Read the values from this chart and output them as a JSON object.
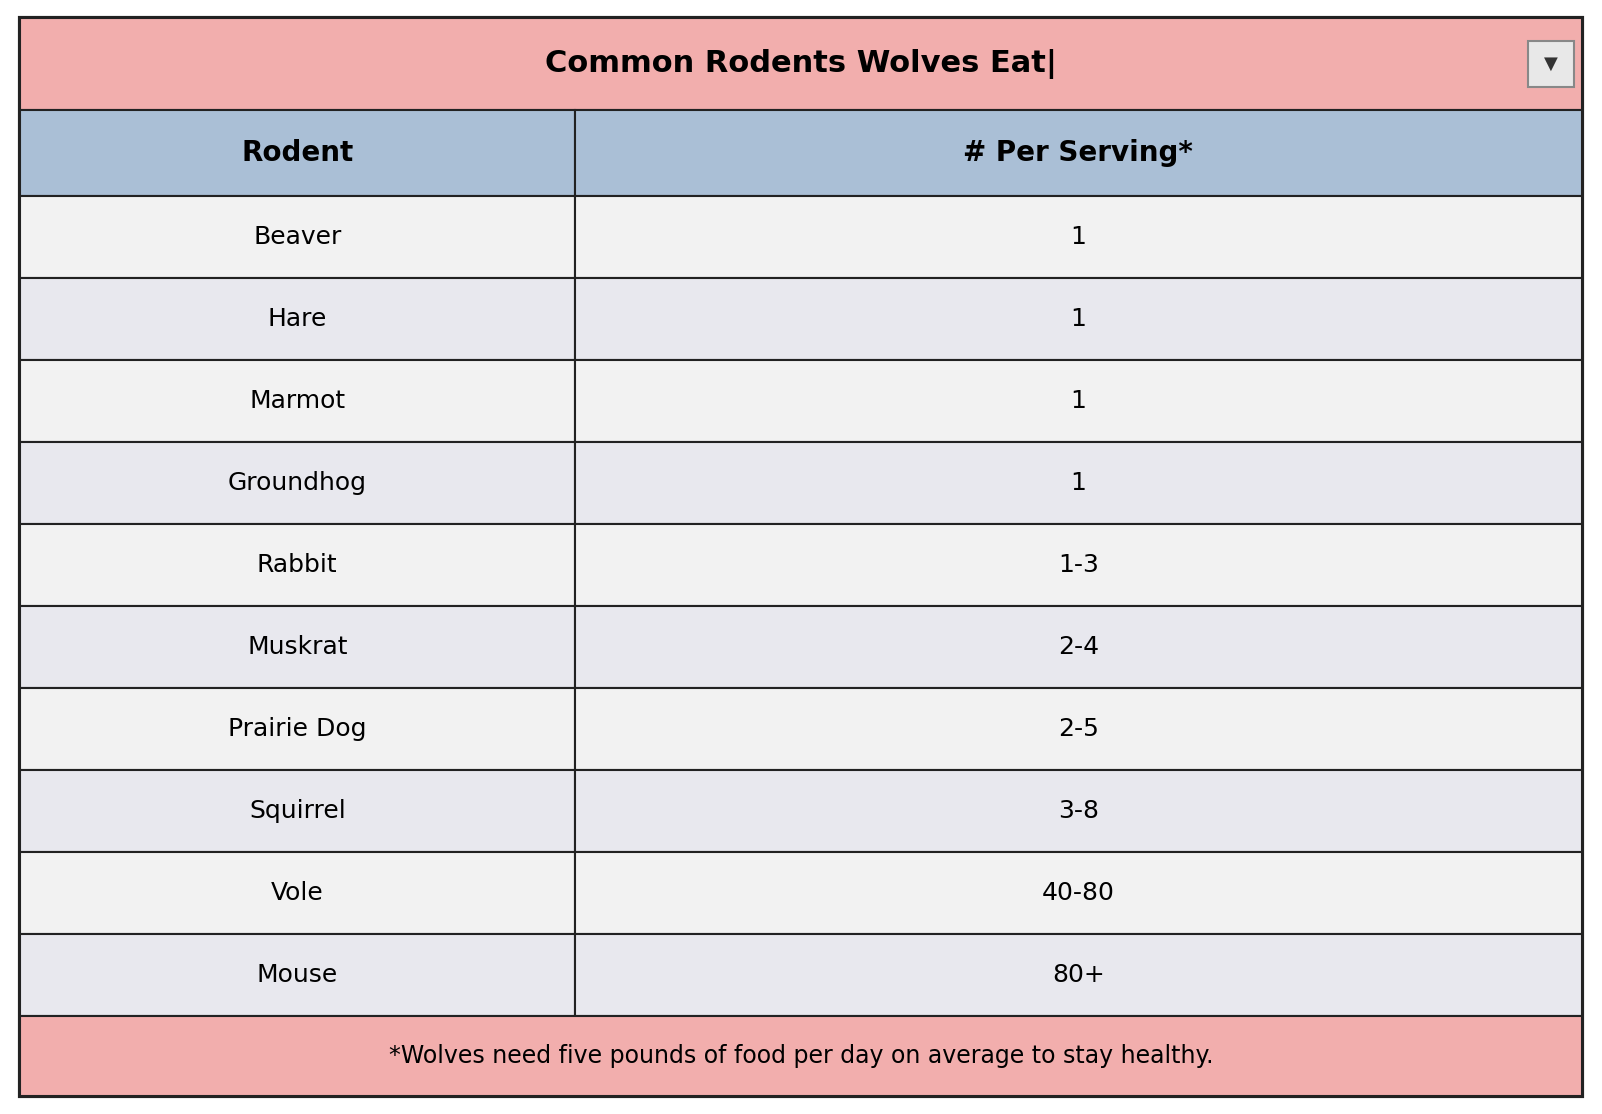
{
  "title_display": "Common Rodents Wolves Eat|",
  "col_headers": [
    "Rodent",
    "# Per Serving*"
  ],
  "rows": [
    [
      "Beaver",
      "1"
    ],
    [
      "Hare",
      "1"
    ],
    [
      "Marmot",
      "1"
    ],
    [
      "Groundhog",
      "1"
    ],
    [
      "Rabbit",
      "1-3"
    ],
    [
      "Muskrat",
      "2-4"
    ],
    [
      "Prairie Dog",
      "2-5"
    ],
    [
      "Squirrel",
      "3-8"
    ],
    [
      "Vole",
      "40-80"
    ],
    [
      "Mouse",
      "80+"
    ]
  ],
  "footer": "*Wolves need five pounds of food per day on average to stay healthy.",
  "title_bg": "#F2AEAD",
  "header_bg": "#AABFD6",
  "row_bg_light": "#F2F2F2",
  "row_bg_dark": "#E8E8EE",
  "footer_bg": "#F2AEAD",
  "border_color": "#222222",
  "text_color": "#000000",
  "title_fontsize": 22,
  "header_fontsize": 20,
  "row_fontsize": 18,
  "footer_fontsize": 17,
  "col_split": 0.355
}
